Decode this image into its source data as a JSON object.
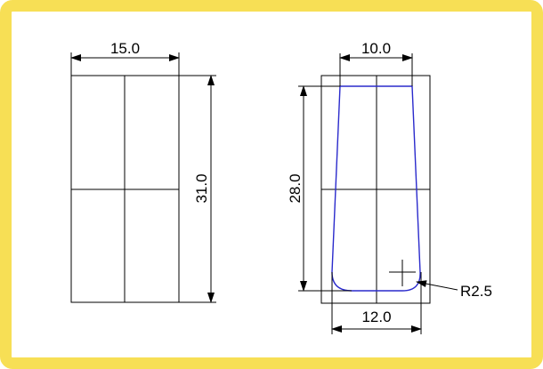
{
  "drawing": {
    "left_view": {
      "width_label": "15.0",
      "height_label": "31.0"
    },
    "right_view": {
      "top_width_label": "10.0",
      "height_label": "28.0",
      "bottom_width_label": "12.0",
      "radius_label": "R2.5"
    }
  },
  "colors": {
    "frame": "#f7df55",
    "profile": "#2a2acc",
    "lines": "#000000"
  }
}
